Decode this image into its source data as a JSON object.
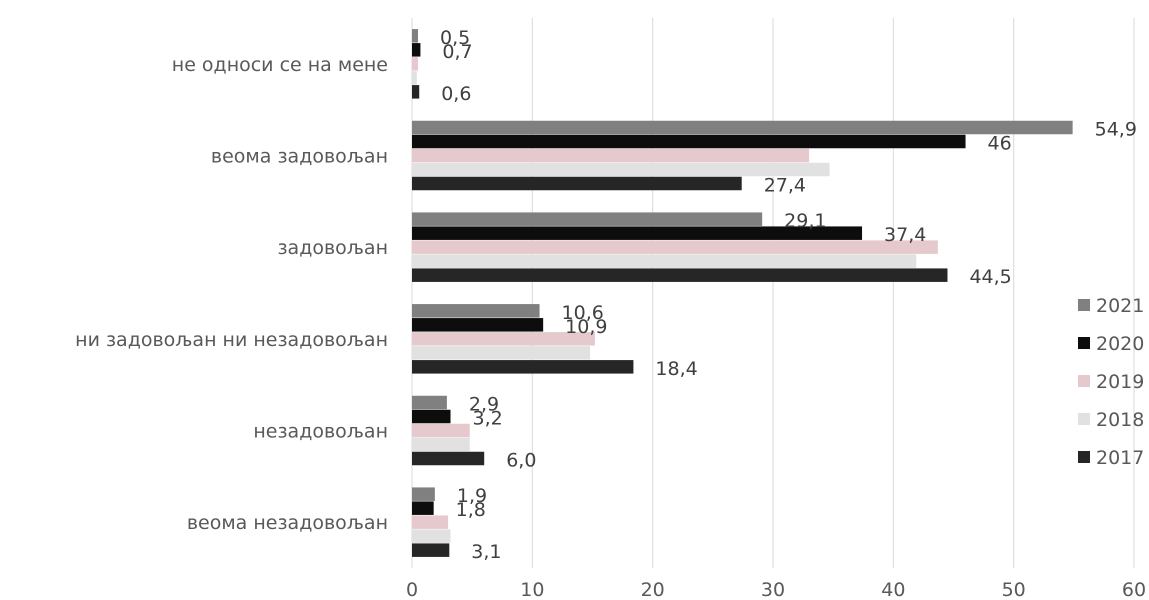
{
  "chart_data": {
    "type": "bar",
    "orientation": "horizontal",
    "categories": [
      "не односи се на мене",
      "веома задовољан",
      "задовољан",
      "ни задовољан ни незадовољан",
      "незадовољан",
      "веома незадовољан"
    ],
    "series": [
      {
        "name": "2021",
        "color": "#808080",
        "values": [
          0.5,
          54.9,
          29.1,
          10.6,
          2.9,
          1.9
        ],
        "labels": [
          "0,5",
          "54,9",
          "29,1",
          "10,6",
          "2,9",
          "1,9"
        ]
      },
      {
        "name": "2020",
        "color": "#0d0d0d",
        "values": [
          0.7,
          46.0,
          37.4,
          10.9,
          3.2,
          1.8
        ],
        "labels": [
          "0,7",
          "46",
          "37,4",
          "10,9",
          "3,2",
          "1,8"
        ]
      },
      {
        "name": "2019",
        "color": "#e6c9cc",
        "values": [
          0.5,
          33.0,
          43.7,
          15.2,
          4.8,
          3.0
        ],
        "labels": [
          "",
          "",
          "",
          "",
          "",
          ""
        ]
      },
      {
        "name": "2018",
        "color": "#e1e1e1",
        "values": [
          0.4,
          34.7,
          41.9,
          14.8,
          4.8,
          3.2
        ],
        "labels": [
          "",
          "",
          "",
          "",
          "",
          ""
        ]
      },
      {
        "name": "2017",
        "color": "#262626",
        "values": [
          0.6,
          27.4,
          44.5,
          18.4,
          6.0,
          3.1
        ],
        "labels": [
          "0,6",
          "27,4",
          "44,5",
          "18,4",
          "6,0",
          "3,1"
        ]
      }
    ],
    "xlim": [
      0,
      60
    ],
    "ticks": [
      0,
      10,
      20,
      30,
      40,
      50,
      60
    ],
    "grid": true,
    "legend_position": "right",
    "title": "",
    "xlabel": "",
    "ylabel": ""
  }
}
